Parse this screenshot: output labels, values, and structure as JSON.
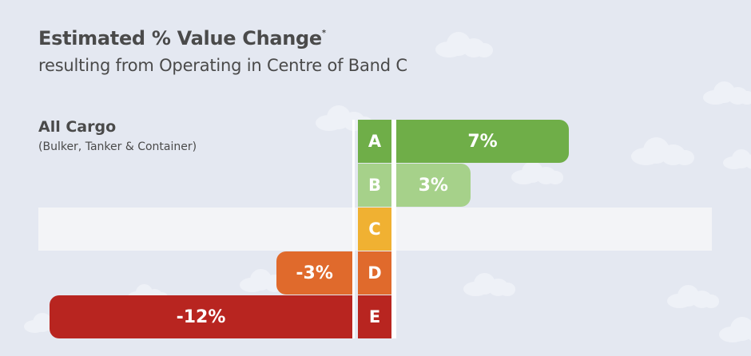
{
  "title": "Estimated % Value Change",
  "title_marker": "*",
  "subtitle": "resulting from Operating in Centre of Band C",
  "category": {
    "title": "All Cargo",
    "subtitle": "(Bulker, Tanker & Container)"
  },
  "chart_data": {
    "type": "bar",
    "orientation": "horizontal",
    "categories": [
      "A",
      "B",
      "C",
      "D",
      "E"
    ],
    "values": [
      7,
      3,
      null,
      -3,
      -12
    ],
    "value_labels": [
      "7%",
      "3%",
      "",
      "-3%",
      "-12%"
    ],
    "band_colors": [
      "#6fae48",
      "#a6d18a",
      "#f0b132",
      "#e06a2c",
      "#b82520"
    ],
    "bar_colors": [
      "#6fae48",
      "#a6d18a",
      "#f0b132",
      "#e06a2c",
      "#b82520"
    ],
    "baseline_category": "C",
    "xlim": [
      -12.4,
      7.4
    ],
    "grid": false
  }
}
